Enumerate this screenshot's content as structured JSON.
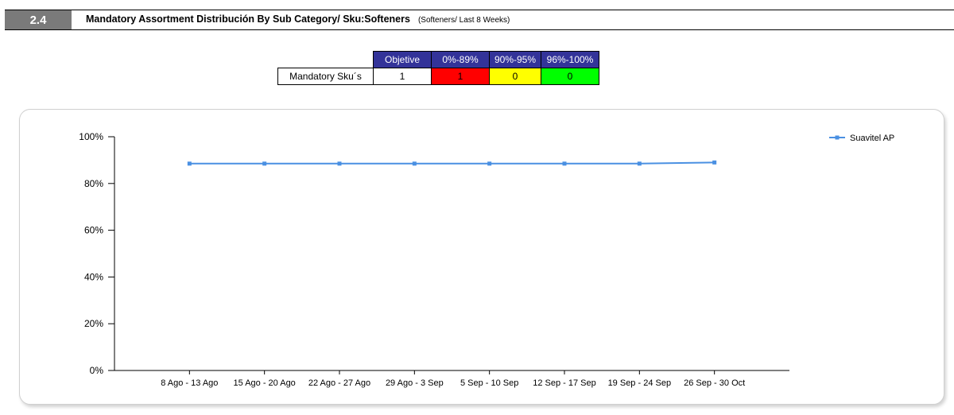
{
  "header": {
    "section_number": "2.4",
    "title": "Mandatory Assortment Distribución By Sub Category/ Sku:Softeners",
    "subtitle": "(Softeners/ Last 8 Weeks)"
  },
  "legend_table": {
    "headers": [
      "Objetive",
      "0%-89%",
      "90%-95%",
      "96%-100%"
    ],
    "row_label": "Mandatory Sku´s",
    "values": [
      "1",
      "1",
      "0",
      "0"
    ],
    "colors": {
      "header": "#333399",
      "red": "#ff0000",
      "yellow": "#ffff00",
      "green": "#00ff00"
    }
  },
  "chart_data": {
    "type": "line",
    "categories": [
      "8 Ago - 13 Ago",
      "15 Ago - 20 Ago",
      "22 Ago - 27 Ago",
      "29 Ago - 3 Sep",
      "5 Sep - 10 Sep",
      "12 Sep - 17 Sep",
      "19 Sep - 24 Sep",
      "26 Sep - 30 Oct"
    ],
    "series": [
      {
        "name": "Suavitel  AP",
        "color": "#4a90e2",
        "values": [
          88.5,
          88.5,
          88.5,
          88.5,
          88.5,
          88.5,
          88.5,
          89
        ]
      }
    ],
    "ylim": [
      0,
      100
    ],
    "yticks": [
      0,
      20,
      40,
      60,
      80,
      100
    ],
    "ytick_labels": [
      "0%",
      "20%",
      "40%",
      "60%",
      "80%",
      "100%"
    ],
    "grid": false,
    "legend_position": "top-right"
  }
}
